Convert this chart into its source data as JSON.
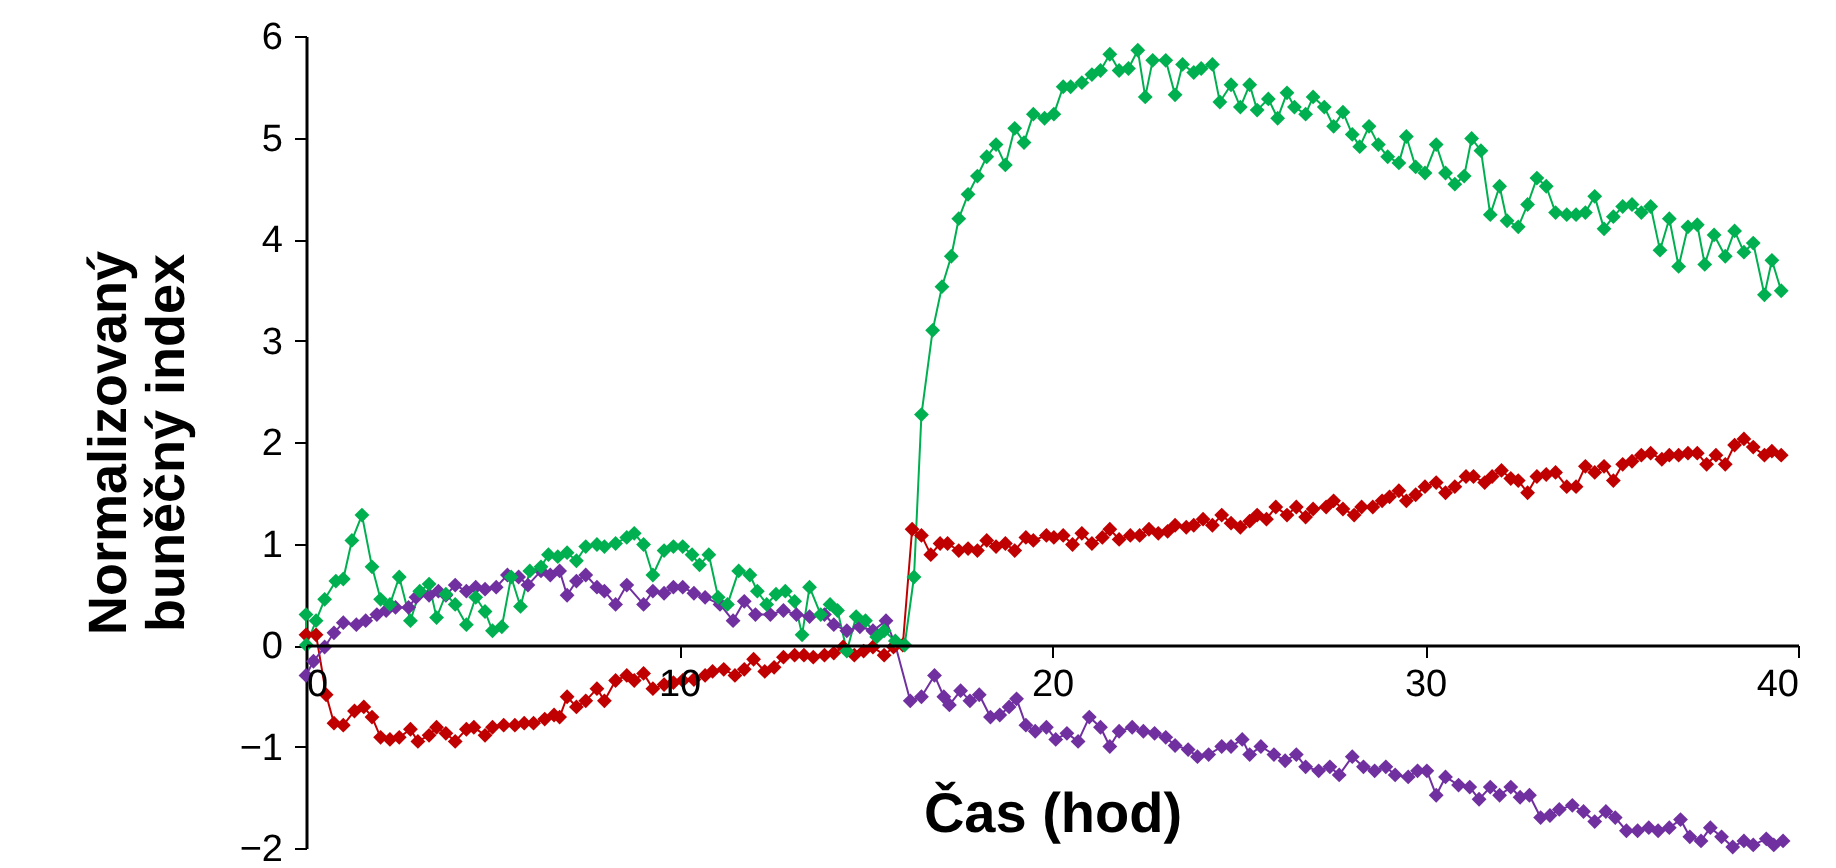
{
  "chart_data": {
    "type": "line",
    "xlabel": "Čas (hod)",
    "ylabel": "Normalizovaný buněčný index",
    "xlim": [
      0,
      40
    ],
    "xticks": [
      0,
      10,
      20,
      30,
      40
    ],
    "ylim": [
      -2,
      6
    ],
    "yticks": [
      -2,
      -1,
      0,
      1,
      2,
      3,
      4,
      5,
      6
    ],
    "grid": false,
    "marker": "diamond",
    "line_style": "solid",
    "series": [
      {
        "color": "#00b050",
        "x": [
          0,
          0.01,
          0.27,
          0.5,
          0.8,
          1.0,
          1.23,
          1.5,
          1.77,
          2.0,
          2.25,
          2.5,
          2.8,
          3.05,
          3.3,
          3.5,
          3.75,
          4.0,
          4.3,
          4.55,
          4.8,
          5.0,
          5.25,
          5.5,
          5.75,
          6.0,
          6.3,
          6.5,
          6.75,
          7.0,
          7.25,
          7.5,
          7.8,
          8.0,
          8.3,
          8.6,
          8.8,
          9.05,
          9.3,
          9.6,
          9.85,
          10.1,
          10.35,
          10.55,
          10.8,
          11.05,
          11.3,
          11.6,
          11.9,
          12.1,
          12.35,
          12.6,
          12.85,
          13.1,
          13.3,
          13.5,
          13.8,
          14.05,
          14.25,
          14.5,
          14.75,
          15.0,
          15.3,
          15.5,
          15.8,
          16.05,
          16.3,
          16.5,
          16.8,
          17.05,
          17.3,
          17.5,
          17.75,
          18.0,
          18.25,
          18.5,
          18.75,
          19.0,
          19.25,
          19.5,
          19.8,
          20.05,
          20.3,
          20.5,
          20.8,
          21.07,
          21.3,
          21.55,
          21.8,
          22.05,
          22.3,
          22.5,
          22.7,
          23.05,
          23.3,
          23.5,
          23.8,
          24.0,
          24.3,
          24.5,
          24.8,
          25.05,
          25.3,
          25.5,
          25.8,
          26.05,
          26.3,
          26.5,
          26.8,
          27.0,
          27.3,
          27.55,
          27.8,
          28.05,
          28.25,
          28.5,
          28.75,
          29.0,
          29.3,
          29.5,
          29.75,
          30.0,
          30.3,
          30.55,
          30.8,
          31.05,
          31.25,
          31.5,
          31.75,
          32.0,
          32.2,
          32.5,
          32.75,
          33.0,
          33.25,
          33.5,
          33.8,
          34.05,
          34.3,
          34.55,
          34.8,
          35.05,
          35.3,
          35.55,
          35.8,
          36.05,
          36.3,
          36.55,
          36.8,
          37.05,
          37.3,
          37.5,
          37.75,
          38.05,
          38.3,
          38.55,
          38.8,
          39.1,
          39.3,
          39.55
        ],
        "values": [
          0.3,
          0,
          0.24,
          0.45,
          0.63,
          0.65,
          1.03,
          1.28,
          0.77,
          0.45,
          0.4,
          0.67,
          0.24,
          0.53,
          0.6,
          0.27,
          0.5,
          0.4,
          0.2,
          0.47,
          0.33,
          0.14,
          0.18,
          0.67,
          0.38,
          0.73,
          0.77,
          0.89,
          0.87,
          0.91,
          0.83,
          0.97,
          0.99,
          0.97,
          1.0,
          1.06,
          1.1,
          0.99,
          0.69,
          0.93,
          0.97,
          0.97,
          0.89,
          0.79,
          0.89,
          0.47,
          0.4,
          0.73,
          0.69,
          0.53,
          0.4,
          0.5,
          0.53,
          0.43,
          0.1,
          0.57,
          0.3,
          0.4,
          0.34,
          -0.06,
          0.28,
          0.24,
          0.08,
          0.14,
          0.04,
          0,
          0.67,
          2.27,
          3.1,
          3.53,
          3.83,
          4.2,
          4.44,
          4.62,
          4.81,
          4.93,
          4.73,
          5.09,
          4.95,
          5.23,
          5.19,
          5.23,
          5.5,
          5.5,
          5.54,
          5.62,
          5.66,
          5.82,
          5.66,
          5.68,
          5.86,
          5.4,
          5.76,
          5.76,
          5.42,
          5.72,
          5.64,
          5.68,
          5.72,
          5.35,
          5.52,
          5.3,
          5.52,
          5.27,
          5.38,
          5.19,
          5.44,
          5.3,
          5.23,
          5.4,
          5.3,
          5.11,
          5.25,
          5.03,
          4.91,
          5.11,
          4.93,
          4.81,
          4.75,
          5.01,
          4.71,
          4.65,
          4.93,
          4.65,
          4.54,
          4.62,
          4.99,
          4.87,
          4.24,
          4.52,
          4.18,
          4.12,
          4.34,
          4.6,
          4.52,
          4.26,
          4.24,
          4.24,
          4.26,
          4.42,
          4.1,
          4.22,
          4.32,
          4.34,
          4.26,
          4.32,
          3.89,
          4.2,
          3.73,
          4.12,
          4.14,
          3.75,
          4.04,
          3.83,
          4.08,
          3.87,
          3.96,
          3.45,
          3.79,
          3.49
        ]
      },
      {
        "color": "#c00000",
        "x": [
          0,
          0.27,
          0.54,
          0.75,
          1.0,
          1.3,
          1.55,
          1.77,
          2.0,
          2.25,
          2.5,
          2.8,
          3.0,
          3.3,
          3.5,
          3.75,
          4.0,
          4.3,
          4.5,
          4.8,
          5.0,
          5.3,
          5.6,
          5.85,
          6.1,
          6.4,
          6.65,
          6.8,
          7.0,
          7.25,
          7.5,
          7.8,
          8.0,
          8.3,
          8.6,
          8.8,
          9.05,
          9.3,
          9.6,
          9.85,
          10.1,
          10.4,
          10.7,
          10.9,
          11.2,
          11.5,
          11.75,
          12.0,
          12.3,
          12.55,
          12.8,
          13.1,
          13.35,
          13.6,
          13.9,
          14.15,
          14.4,
          14.7,
          14.95,
          15.2,
          15.5,
          15.75,
          16.0,
          16.25,
          16.5,
          16.75,
          17.0,
          17.2,
          17.5,
          17.75,
          18.0,
          18.25,
          18.5,
          18.75,
          19.0,
          19.3,
          19.5,
          19.85,
          20.05,
          20.3,
          20.55,
          20.8,
          21.07,
          21.35,
          21.55,
          21.8,
          22.1,
          22.35,
          22.6,
          22.85,
          23.1,
          23.3,
          23.6,
          23.8,
          24.05,
          24.3,
          24.55,
          24.8,
          25.05,
          25.3,
          25.5,
          25.75,
          26.0,
          26.3,
          26.55,
          26.8,
          27.0,
          27.35,
          27.55,
          27.8,
          28.1,
          28.3,
          28.6,
          28.85,
          29.05,
          29.3,
          29.5,
          29.75,
          30.0,
          30.3,
          30.55,
          30.8,
          31.1,
          31.3,
          31.6,
          31.8,
          32.05,
          32.3,
          32.5,
          32.75,
          33.0,
          33.25,
          33.5,
          33.8,
          34.05,
          34.3,
          34.55,
          34.8,
          35.05,
          35.3,
          35.55,
          35.8,
          36.05,
          36.35,
          36.55,
          36.8,
          37.05,
          37.3,
          37.55,
          37.8,
          38.05,
          38.3,
          38.55,
          38.8,
          39.1,
          39.3,
          39.55
        ],
        "values": [
          0.1,
          0.1,
          -0.49,
          -0.77,
          -0.79,
          -0.65,
          -0.61,
          -0.71,
          -0.91,
          -0.93,
          -0.91,
          -0.83,
          -0.95,
          -0.89,
          -0.81,
          -0.87,
          -0.95,
          -0.83,
          -0.81,
          -0.89,
          -0.81,
          -0.79,
          -0.79,
          -0.77,
          -0.77,
          -0.73,
          -0.69,
          -0.71,
          -0.51,
          -0.61,
          -0.55,
          -0.43,
          -0.55,
          -0.35,
          -0.3,
          -0.35,
          -0.28,
          -0.43,
          -0.39,
          -0.37,
          -0.35,
          -0.34,
          -0.3,
          -0.26,
          -0.24,
          -0.3,
          -0.24,
          -0.14,
          -0.26,
          -0.22,
          -0.12,
          -0.1,
          -0.1,
          -0.12,
          -0.1,
          -0.08,
          -0.02,
          -0.1,
          -0.06,
          -0.02,
          -0.1,
          -0.02,
          0,
          1.14,
          1.08,
          0.89,
          1.0,
          1.0,
          0.93,
          0.95,
          0.93,
          1.03,
          0.97,
          1.0,
          0.93,
          1.06,
          1.03,
          1.08,
          1.06,
          1.08,
          0.99,
          1.1,
          1.0,
          1.06,
          1.14,
          1.04,
          1.08,
          1.08,
          1.14,
          1.1,
          1.12,
          1.18,
          1.16,
          1.18,
          1.24,
          1.18,
          1.28,
          1.2,
          1.16,
          1.22,
          1.28,
          1.24,
          1.36,
          1.28,
          1.36,
          1.26,
          1.34,
          1.36,
          1.42,
          1.34,
          1.28,
          1.36,
          1.36,
          1.42,
          1.46,
          1.52,
          1.42,
          1.48,
          1.56,
          1.6,
          1.5,
          1.56,
          1.66,
          1.66,
          1.6,
          1.66,
          1.72,
          1.64,
          1.62,
          1.5,
          1.66,
          1.68,
          1.7,
          1.56,
          1.56,
          1.76,
          1.7,
          1.76,
          1.62,
          1.78,
          1.81,
          1.87,
          1.89,
          1.83,
          1.87,
          1.87,
          1.89,
          1.89,
          1.78,
          1.87,
          1.78,
          1.97,
          2.03,
          1.95,
          1.87,
          1.91,
          1.87
        ]
      },
      {
        "color": "#7030a0",
        "x": [
          0,
          0.2,
          0.5,
          0.75,
          1.0,
          1.35,
          1.6,
          1.9,
          2.15,
          2.4,
          2.75,
          2.95,
          3.3,
          3.55,
          3.75,
          4.0,
          4.3,
          4.55,
          4.8,
          5.1,
          5.4,
          5.7,
          5.95,
          6.3,
          6.55,
          6.8,
          7.0,
          7.25,
          7.5,
          7.8,
          8.0,
          8.3,
          8.6,
          9.05,
          9.3,
          9.6,
          9.85,
          10.1,
          10.4,
          10.7,
          11.1,
          11.45,
          11.75,
          12.05,
          12.45,
          12.8,
          13.15,
          13.5,
          13.9,
          14.15,
          14.5,
          14.85,
          15.2,
          15.55,
          15.8,
          16.2,
          16.5,
          16.85,
          17.1,
          17.25,
          17.55,
          17.8,
          18.05,
          18.35,
          18.6,
          18.85,
          19.05,
          19.3,
          19.55,
          19.85,
          20.1,
          20.4,
          20.7,
          21.0,
          21.3,
          21.55,
          21.8,
          22.15,
          22.45,
          22.75,
          23.05,
          23.3,
          23.65,
          23.9,
          24.2,
          24.55,
          24.8,
          25.1,
          25.3,
          25.6,
          25.95,
          26.25,
          26.55,
          26.8,
          27.15,
          27.45,
          27.7,
          28.05,
          28.35,
          28.65,
          28.95,
          29.2,
          29.55,
          29.8,
          30.05,
          30.3,
          30.55,
          30.9,
          31.2,
          31.45,
          31.75,
          32.0,
          32.3,
          32.55,
          32.8,
          33.1,
          33.35,
          33.6,
          33.95,
          34.25,
          34.55,
          34.85,
          35.1,
          35.4,
          35.7,
          36.0,
          36.25,
          36.55,
          36.85,
          37.1,
          37.4,
          37.65,
          37.95,
          38.25,
          38.55,
          38.8,
          39.15,
          39.35,
          39.6
        ],
        "values": [
          -0.3,
          -0.16,
          -0.02,
          0.12,
          0.22,
          0.2,
          0.24,
          0.3,
          0.34,
          0.37,
          0.37,
          0.47,
          0.49,
          0.53,
          0.49,
          0.59,
          0.53,
          0.57,
          0.55,
          0.57,
          0.69,
          0.67,
          0.59,
          0.73,
          0.69,
          0.73,
          0.49,
          0.63,
          0.69,
          0.57,
          0.53,
          0.4,
          0.59,
          0.4,
          0.53,
          0.51,
          0.57,
          0.57,
          0.51,
          0.47,
          0.4,
          0.24,
          0.43,
          0.3,
          0.3,
          0.34,
          0.3,
          0.28,
          0.3,
          0.2,
          0.14,
          0.18,
          0.14,
          0.24,
          0,
          -0.55,
          -0.51,
          -0.3,
          -0.51,
          -0.59,
          -0.45,
          -0.55,
          -0.49,
          -0.71,
          -0.69,
          -0.61,
          -0.53,
          -0.79,
          -0.85,
          -0.81,
          -0.93,
          -0.87,
          -0.95,
          -0.71,
          -0.81,
          -1.0,
          -0.85,
          -0.81,
          -0.85,
          -0.87,
          -0.91,
          -0.99,
          -1.03,
          -1.1,
          -1.08,
          -1.0,
          -1.0,
          -0.93,
          -1.08,
          -1.0,
          -1.08,
          -1.14,
          -1.08,
          -1.2,
          -1.24,
          -1.2,
          -1.28,
          -1.1,
          -1.2,
          -1.24,
          -1.2,
          -1.28,
          -1.3,
          -1.24,
          -1.24,
          -1.48,
          -1.3,
          -1.38,
          -1.4,
          -1.52,
          -1.4,
          -1.48,
          -1.4,
          -1.5,
          -1.48,
          -1.7,
          -1.68,
          -1.62,
          -1.58,
          -1.64,
          -1.74,
          -1.64,
          -1.7,
          -1.83,
          -1.83,
          -1.8,
          -1.83,
          -1.8,
          -1.72,
          -1.89,
          -1.93,
          -1.8,
          -1.89,
          -1.99,
          -1.93,
          -1.97,
          -1.91,
          -1.97,
          -1.93
        ]
      }
    ]
  }
}
